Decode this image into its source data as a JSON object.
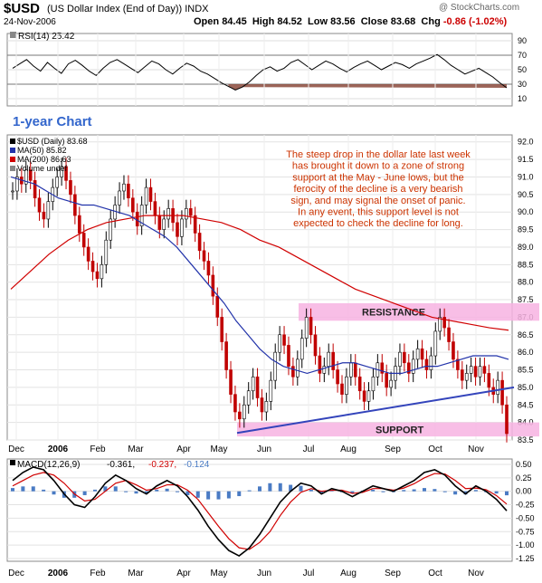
{
  "header": {
    "symbol": "$USD",
    "description": "(US Dollar Index (End of Day)) INDX",
    "date": "24-Nov-2006",
    "ohlc": {
      "open": "84.45",
      "high": "84.52",
      "low": "83.56",
      "close": "83.68",
      "chg": "-0.86 (-1.02%)"
    },
    "labels": {
      "open": "Open",
      "high": "High",
      "low": "Low",
      "close": "Close",
      "chg": "Chg"
    },
    "logo": "@ StockCharts.com"
  },
  "chart_data": [
    {
      "type": "line",
      "panel": "rsi",
      "legend": "RSI(14) 25.42",
      "ylim": [
        0,
        100
      ],
      "yticks": [
        "90",
        "70",
        "50",
        "30",
        "10"
      ],
      "ytick_values": [
        90,
        70,
        50,
        30,
        10
      ],
      "overbought": 70,
      "oversold": 30,
      "values": [
        52,
        58,
        64,
        55,
        48,
        60,
        52,
        45,
        58,
        63,
        56,
        48,
        42,
        52,
        60,
        64,
        58,
        52,
        46,
        54,
        62,
        58,
        50,
        44,
        52,
        59,
        55,
        48,
        44,
        38,
        32,
        27,
        22,
        26,
        33,
        42,
        50,
        54,
        48,
        52,
        60,
        64,
        57,
        50,
        56,
        62,
        58,
        52,
        47,
        53,
        58,
        62,
        56,
        50,
        55,
        60,
        57,
        52,
        58,
        62,
        66,
        71,
        64,
        56,
        50,
        44,
        48,
        52,
        46,
        40,
        32,
        25
      ]
    },
    {
      "type": "candlestick",
      "panel": "price",
      "chart_label": "1-year Chart",
      "legend": [
        "$USD (Daily) 83.68",
        "MA(50) 85.82",
        "MA(200) 86.63",
        "Volume undef"
      ],
      "ylim": [
        83.5,
        92.2
      ],
      "yticks": [
        "92.0",
        "91.5",
        "91.0",
        "90.5",
        "90.0",
        "89.5",
        "89.0",
        "88.5",
        "88.0",
        "87.5",
        "87.0",
        "86.5",
        "86.0",
        "85.5",
        "85.0",
        "84.5",
        "84.0",
        "83.5"
      ],
      "ytick_values": [
        92.0,
        91.5,
        91.0,
        90.5,
        90.0,
        89.5,
        89.0,
        88.5,
        88.0,
        87.5,
        87.0,
        86.5,
        86.0,
        85.5,
        85.0,
        84.5,
        84.0,
        83.5
      ],
      "x_labels": [
        "Dec",
        "2006",
        "Feb",
        "Mar",
        "Apr",
        "May",
        "Jun",
        "Jul",
        "Aug",
        "Sep",
        "Oct",
        "Nov"
      ],
      "closes": [
        90.6,
        91.0,
        90.8,
        91.2,
        90.9,
        90.4,
        90.0,
        89.8,
        90.3,
        90.7,
        91.0,
        91.3,
        90.9,
        90.5,
        89.9,
        89.4,
        89.0,
        88.6,
        88.3,
        88.1,
        88.5,
        89.2,
        89.8,
        90.2,
        90.6,
        90.8,
        90.4,
        90.0,
        89.6,
        90.2,
        90.7,
        90.3,
        89.9,
        89.5,
        89.8,
        90.1,
        89.7,
        89.3,
        89.8,
        90.1,
        89.9,
        89.4,
        88.9,
        88.6,
        88.2,
        87.6,
        87.0,
        86.3,
        85.5,
        84.8,
        84.3,
        84.1,
        84.5,
        84.9,
        85.3,
        84.7,
        84.3,
        84.6,
        85.2,
        86.0,
        86.5,
        86.2,
        85.6,
        85.3,
        85.8,
        86.4,
        87.0,
        86.5,
        85.9,
        85.4,
        85.6,
        86.0,
        85.5,
        85.1,
        84.8,
        85.3,
        85.7,
        85.3,
        84.9,
        84.6,
        84.9,
        85.3,
        85.7,
        85.4,
        85.0,
        85.2,
        85.6,
        86.0,
        85.7,
        85.4,
        85.8,
        86.1,
        85.8,
        85.5,
        85.9,
        86.6,
        87.0,
        86.7,
        86.3,
        85.8,
        85.5,
        85.2,
        85.4,
        85.6,
        85.3,
        85.6,
        85.4,
        85.0,
        84.8,
        85.2,
        84.5,
        83.68
      ],
      "ma50": [
        91.0,
        90.9,
        90.8,
        90.6,
        90.4,
        90.3,
        90.2,
        90.2,
        90.1,
        90.0,
        89.9,
        89.7,
        89.5,
        89.3,
        89.0,
        88.6,
        88.2,
        87.8,
        87.4,
        86.9,
        86.5,
        86.1,
        85.8,
        85.6,
        85.5,
        85.4,
        85.5,
        85.6,
        85.7,
        85.7,
        85.6,
        85.5,
        85.4,
        85.4,
        85.5,
        85.6,
        85.6,
        85.7,
        85.8,
        85.9,
        85.9,
        85.9,
        85.8
      ],
      "ma200": [
        87.8,
        88.3,
        88.8,
        89.2,
        89.5,
        89.7,
        89.8,
        89.9,
        89.9,
        89.9,
        89.8,
        89.7,
        89.5,
        89.2,
        89.0,
        88.7,
        88.4,
        88.1,
        87.8,
        87.6,
        87.4,
        87.2,
        87.0,
        86.9,
        86.8,
        86.7,
        86.63
      ],
      "resistance": {
        "low": 86.9,
        "high": 87.4,
        "label": "RESISTANCE"
      },
      "support": {
        "low": 83.6,
        "high": 84.0,
        "label": "SUPPORT"
      },
      "trendline": {
        "start": 83.7,
        "end": 85.0
      },
      "annotation": [
        "The steep drop in the dollar late last week",
        "has brought it down to a zone of strong",
        "support at the May - June lows, but the",
        "ferocity of the decline is a very bearish",
        "sign, and may signal the onset of panic.",
        "In any event, this support level is not",
        "expected to check the decline for long."
      ]
    },
    {
      "type": "line",
      "panel": "macd",
      "legend": [
        "MACD(12,26,9)",
        "-0.361,",
        "-0.237,",
        "-0.124"
      ],
      "ylim": [
        -1.3,
        0.6
      ],
      "yticks": [
        "0.50",
        "0.25",
        "0.00",
        "-0.25",
        "-0.50",
        "-0.75",
        "-1.00",
        "-1.25"
      ],
      "ytick_values": [
        0.5,
        0.25,
        0.0,
        -0.25,
        -0.5,
        -0.75,
        -1.0,
        -1.25
      ],
      "x_labels": [
        "Dec",
        "2006",
        "Feb",
        "Mar",
        "Apr",
        "May",
        "Jun",
        "Jul",
        "Aug",
        "Sep",
        "Oct",
        "Nov"
      ],
      "macd": [
        0.2,
        0.35,
        0.45,
        0.4,
        0.2,
        -0.05,
        -0.25,
        -0.3,
        -0.1,
        0.15,
        0.3,
        0.2,
        0.05,
        -0.05,
        0.1,
        0.2,
        0.1,
        -0.1,
        -0.35,
        -0.65,
        -0.9,
        -1.1,
        -1.2,
        -1.05,
        -0.8,
        -0.5,
        -0.2,
        0.0,
        0.15,
        0.1,
        -0.05,
        0.05,
        0.0,
        -0.1,
        0.0,
        0.1,
        0.05,
        0.0,
        0.1,
        0.2,
        0.35,
        0.4,
        0.3,
        0.1,
        -0.05,
        0.1,
        0.0,
        -0.15,
        -0.361
      ],
      "signal": [
        0.1,
        0.2,
        0.3,
        0.35,
        0.3,
        0.15,
        -0.05,
        -0.18,
        -0.15,
        0.0,
        0.15,
        0.2,
        0.12,
        0.02,
        0.05,
        0.12,
        0.12,
        0.02,
        -0.15,
        -0.4,
        -0.65,
        -0.88,
        -1.05,
        -1.08,
        -0.95,
        -0.75,
        -0.45,
        -0.2,
        -0.02,
        0.05,
        0.0,
        0.02,
        0.02,
        -0.04,
        -0.02,
        0.05,
        0.05,
        0.02,
        0.06,
        0.14,
        0.25,
        0.33,
        0.32,
        0.2,
        0.05,
        0.06,
        0.03,
        -0.08,
        -0.237
      ]
    }
  ]
}
